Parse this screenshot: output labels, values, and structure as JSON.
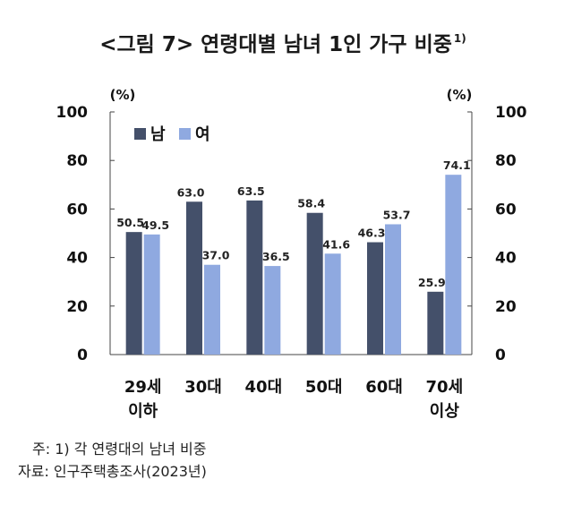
{
  "chart_data": {
    "type": "bar",
    "title": "<그림 7> 연령대별 남녀 1인 가구 비중",
    "title_superscript": "1)",
    "y_unit_left": "(%)",
    "y_unit_right": "(%)",
    "ylim": [
      0,
      100
    ],
    "yticks": [
      0,
      20,
      40,
      60,
      80,
      100
    ],
    "categories": [
      [
        "29세",
        "이하"
      ],
      [
        "30대"
      ],
      [
        "40대"
      ],
      [
        "50대"
      ],
      [
        "60대"
      ],
      [
        "70세",
        "이상"
      ]
    ],
    "series": [
      {
        "name": "남",
        "color": "#44506a",
        "values": [
          50.5,
          63.0,
          63.5,
          58.4,
          46.3,
          25.9
        ]
      },
      {
        "name": "여",
        "color": "#8fa9e0",
        "values": [
          49.5,
          37.0,
          36.5,
          41.6,
          53.7,
          74.1
        ]
      }
    ],
    "data_labels": [
      [
        "50.5",
        "63.0",
        "63.5",
        "58.4",
        "46.3",
        "25.9"
      ],
      [
        "49.5",
        "37.0",
        "36.5",
        "41.6",
        "53.7",
        "74.1"
      ]
    ],
    "legend_position": "top-left",
    "grid": false
  },
  "footnotes": {
    "note": "주: 1) 각 연령대의 남녀 비중",
    "source": "자료: 인구주택총조사(2023년)"
  }
}
